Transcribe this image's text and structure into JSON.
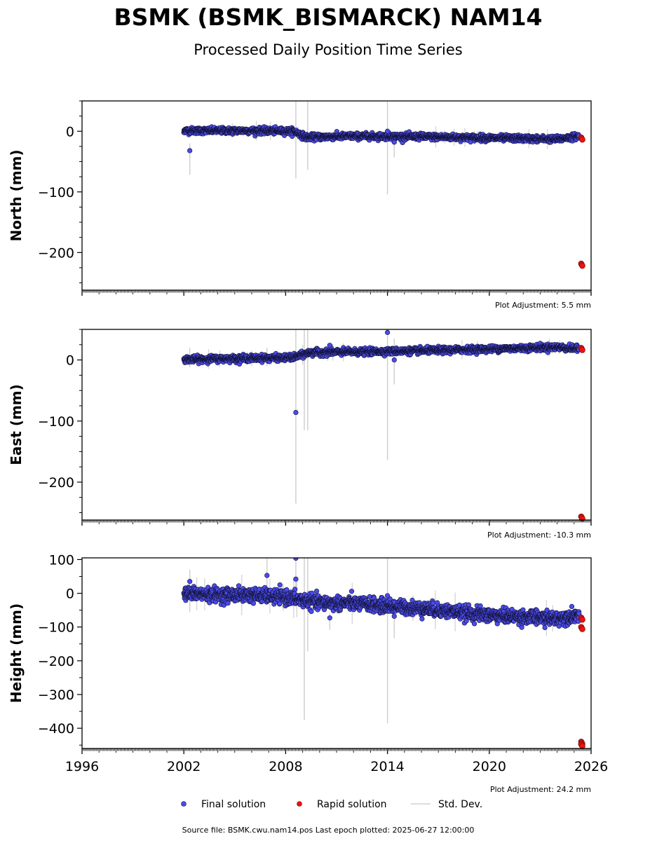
{
  "title": "BSMK (BSMK_BISMARCK) NAM14",
  "subtitle": "Processed Daily Position Time Series",
  "footer": "Source file: BSMK.cwu.nam14.pos  Last epoch plotted: 2025-06-27 12:00:00",
  "colors": {
    "final_fill": "#4b4bea",
    "final_edge": "#111133",
    "rapid_fill": "#ee1111",
    "rapid_edge": "#661111",
    "std": "#d0d0d0"
  },
  "legend": [
    {
      "key": "final",
      "label": "Final solution"
    },
    {
      "key": "rapid",
      "label": "Rapid solution"
    },
    {
      "key": "std",
      "label": "Std. Dev."
    }
  ],
  "chart_data": [
    {
      "type": "scatter",
      "ylabel": "North (mm)",
      "adjustment": "Plot Adjustment: 5.5 mm",
      "xlim": [
        1996,
        2026
      ],
      "ylim": [
        -262,
        50
      ],
      "yticks": [
        0,
        -100,
        -200
      ],
      "x_tick_labels_visible": false,
      "final_trend": [
        [
          2002.0,
          1
        ],
        [
          2004,
          1
        ],
        [
          2006,
          1
        ],
        [
          2008.5,
          0
        ],
        [
          2009.2,
          -10
        ],
        [
          2012,
          -8
        ],
        [
          2016,
          -9
        ],
        [
          2020,
          -11
        ],
        [
          2024,
          -13
        ],
        [
          2025.3,
          -8
        ]
      ],
      "final_scatter_mm": 2.5,
      "rapid": [
        [
          2025.45,
          -12
        ],
        [
          2025.45,
          -220
        ]
      ],
      "outliers": [
        {
          "x": 2002.35,
          "y": -32,
          "sd": 40
        },
        {
          "x": 2014.0,
          "y": 0,
          "sd": 104
        },
        {
          "x": 2014.4,
          "y": -18,
          "sd": 25
        }
      ],
      "std_bars": [
        [
          2008.6,
          50,
          -78
        ],
        [
          2009.3,
          50,
          -64
        ],
        [
          2014.0,
          50,
          -104
        ],
        [
          2014.4,
          -5,
          -43
        ],
        [
          2002.35,
          -20,
          -72
        ]
      ]
    },
    {
      "type": "scatter",
      "ylabel": "East (mm)",
      "adjustment": "Plot Adjustment: -10.3 mm",
      "xlim": [
        1996,
        2026
      ],
      "ylim": [
        -262,
        50
      ],
      "yticks": [
        0,
        -100,
        -200
      ],
      "x_tick_labels_visible": false,
      "final_trend": [
        [
          2002.0,
          1
        ],
        [
          2004,
          2
        ],
        [
          2008.5,
          4
        ],
        [
          2009.4,
          12
        ],
        [
          2012,
          13
        ],
        [
          2016,
          15
        ],
        [
          2020,
          18
        ],
        [
          2024,
          21
        ],
        [
          2025.3,
          18
        ]
      ],
      "final_scatter_mm": 2.5,
      "rapid": [
        [
          2025.45,
          18
        ],
        [
          2025.45,
          -258
        ]
      ],
      "outliers": [
        {
          "x": 2008.6,
          "y": -86,
          "sd": 150
        },
        {
          "x": 2010.6,
          "y": 24,
          "sd": 8
        },
        {
          "x": 2014.0,
          "y": 45,
          "sd": 10
        },
        {
          "x": 2014.4,
          "y": 0,
          "sd": 40
        }
      ],
      "std_bars": [
        [
          2008.6,
          50,
          -235
        ],
        [
          2009.1,
          50,
          -115
        ],
        [
          2009.3,
          50,
          -115
        ],
        [
          2014.0,
          50,
          -164
        ],
        [
          2014.4,
          35,
          -40
        ],
        [
          2002.35,
          20,
          -12
        ],
        [
          2006.9,
          20,
          -10
        ]
      ]
    },
    {
      "type": "scatter",
      "ylabel": "Height (mm)",
      "adjustment": "Plot Adjustment: 24.2 mm",
      "xlim": [
        1996,
        2026
      ],
      "ylim": [
        -460,
        105
      ],
      "yticks": [
        100,
        0,
        -100,
        -200,
        -300,
        -400
      ],
      "x_tick_labels_visible": true,
      "xticks": [
        1996,
        2002,
        2008,
        2014,
        2020,
        2026
      ],
      "final_trend": [
        [
          2002.0,
          0
        ],
        [
          2004,
          -5
        ],
        [
          2006,
          -5
        ],
        [
          2008,
          -12
        ],
        [
          2010,
          -28
        ],
        [
          2012,
          -30
        ],
        [
          2014,
          -38
        ],
        [
          2016,
          -45
        ],
        [
          2018,
          -55
        ],
        [
          2020,
          -65
        ],
        [
          2022,
          -70
        ],
        [
          2024,
          -75
        ],
        [
          2025.3,
          -62
        ]
      ],
      "final_scatter_mm": 10,
      "rapid": [
        [
          2025.45,
          -75
        ],
        [
          2025.45,
          -103
        ],
        [
          2025.45,
          -443
        ],
        [
          2025.45,
          -450
        ]
      ],
      "outliers": [
        {
          "x": 2006.9,
          "y": 53,
          "sd": 40
        },
        {
          "x": 2008.6,
          "y": 42,
          "sd": 60
        },
        {
          "x": 2008.6,
          "y": 104,
          "sd": 10
        },
        {
          "x": 2010.6,
          "y": -73,
          "sd": 30
        },
        {
          "x": 2014.0,
          "y": -7,
          "sd": 20
        },
        {
          "x": 2014.4,
          "y": -68,
          "sd": 60
        },
        {
          "x": 2002.35,
          "y": 35,
          "sd": 30
        }
      ],
      "std_bars": [
        [
          2009.1,
          105,
          -375
        ],
        [
          2009.3,
          105,
          -172
        ],
        [
          2014.0,
          105,
          -385
        ],
        [
          2014.4,
          -20,
          -133
        ],
        [
          2008.6,
          105,
          0
        ],
        [
          2006.9,
          105,
          20
        ],
        [
          2002.35,
          70,
          -55
        ],
        [
          2010.6,
          -60,
          -108
        ]
      ]
    }
  ]
}
